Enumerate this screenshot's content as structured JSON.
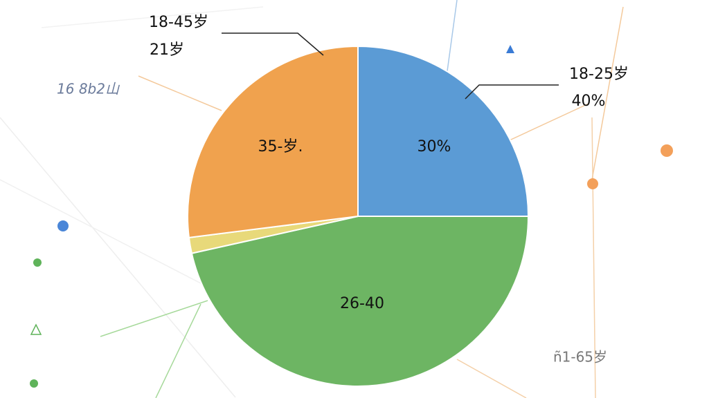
{
  "chart_data": {
    "type": "pie",
    "values": [
      25,
      46.5,
      1.5,
      27
    ],
    "colors": [
      "#5b9bd5",
      "#6db563",
      "#e8d97a",
      "#f0a24e"
    ],
    "annotations": [
      "30%",
      "26-40",
      "35-岁.",
      "18-45岁",
      "21岁",
      "18-25岁",
      "40%",
      "16 8b2山",
      "ñ1-65岁"
    ]
  }
}
